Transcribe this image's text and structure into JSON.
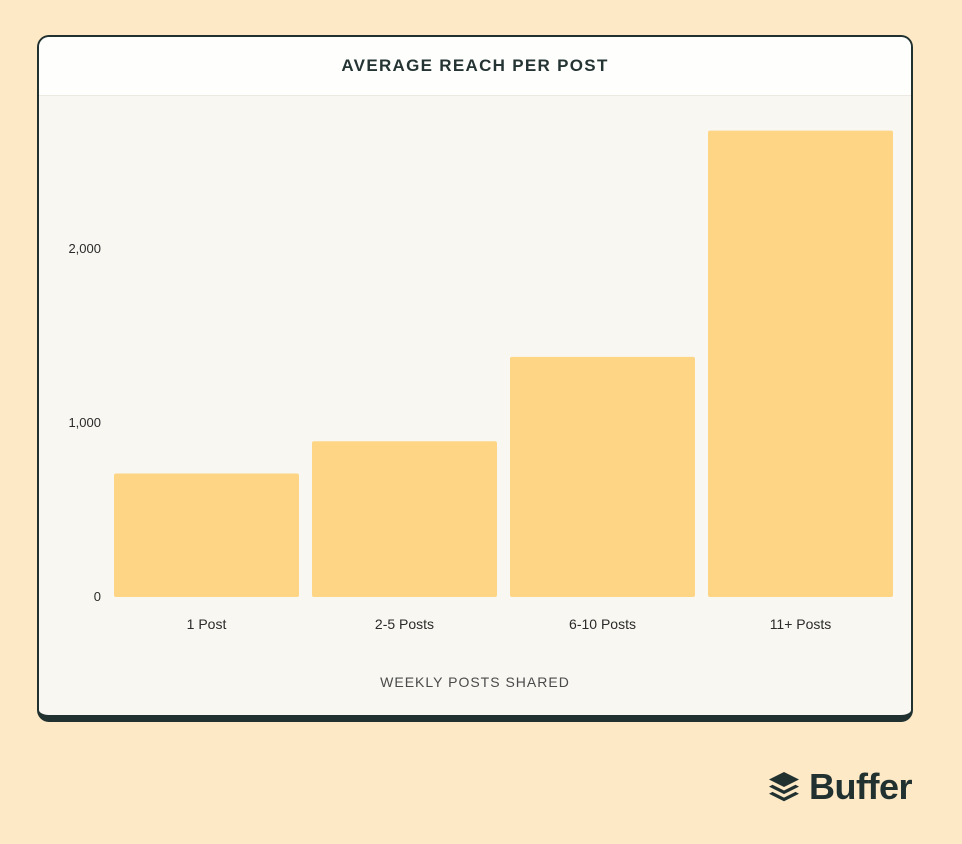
{
  "brand": {
    "name": "Buffer",
    "icon": "buffer-stack-icon",
    "color": "#213130"
  },
  "colors": {
    "bar": "#fdd585",
    "background": "#fde9c6",
    "card": "#f8f7f2"
  },
  "chart_data": {
    "type": "bar",
    "title": "AVERAGE REACH PER POST",
    "xlabel": "WEEKLY POSTS SHARED",
    "ylabel": "",
    "categories": [
      "1 Post",
      "2-5 Posts",
      "6-10 Posts",
      "11+ Posts"
    ],
    "values": [
      710,
      895,
      1380,
      2680
    ],
    "yticks": [
      0,
      1000,
      2000
    ],
    "ytick_labels": [
      "0",
      "1,000",
      "2,000"
    ],
    "ylim": [
      0,
      2680
    ],
    "grid": false,
    "legend": "none"
  }
}
